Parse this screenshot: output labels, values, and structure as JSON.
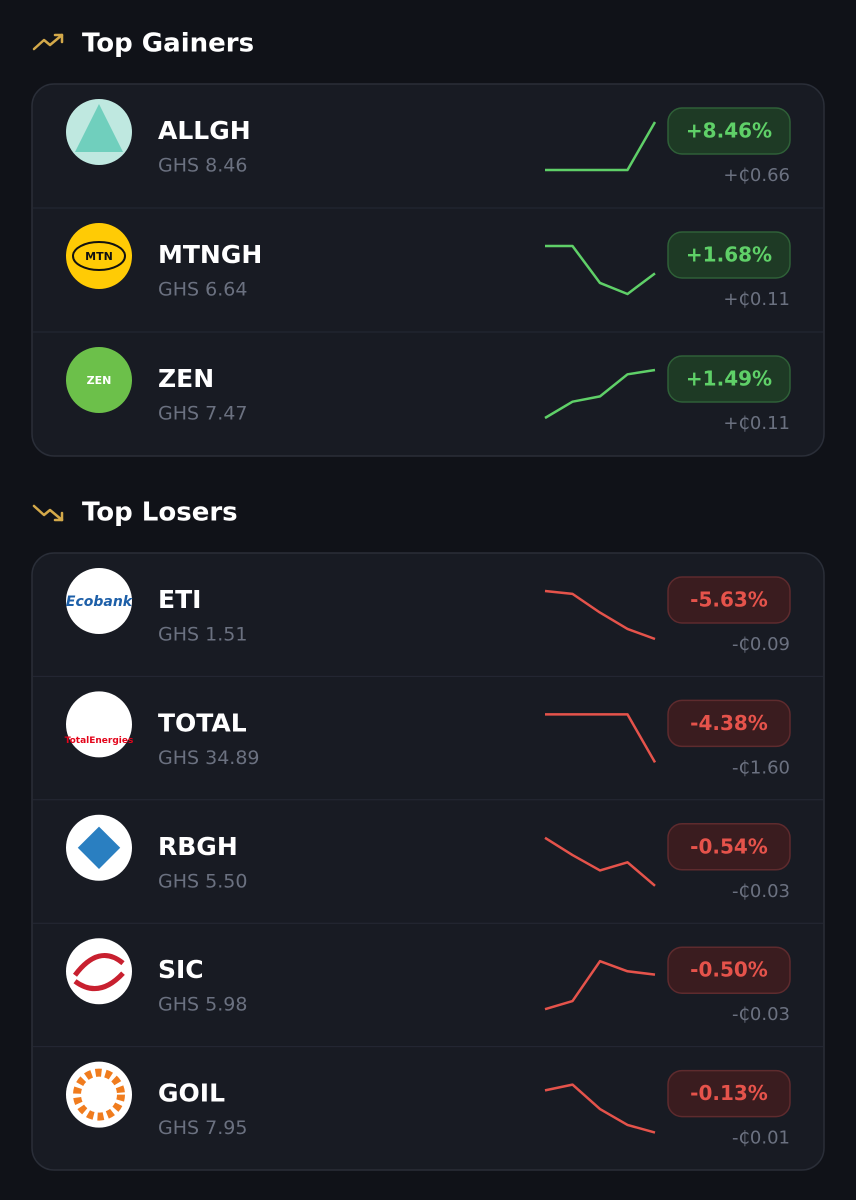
{
  "sections": [
    {
      "title": "Top Gainers",
      "trend": "up",
      "stocks": [
        {
          "ticker": "ALLGH",
          "price": "GHS 8.46",
          "change_pct": "+8.46%",
          "change_abs": "+₵0.66",
          "spark": [
            0,
            0,
            0,
            0,
            100
          ]
        },
        {
          "ticker": "MTNGH",
          "price": "GHS 6.64",
          "change_pct": "+1.68%",
          "change_abs": "+₵0.11",
          "logo_text": "MTN",
          "spark": [
            100,
            100,
            23,
            0,
            43
          ]
        },
        {
          "ticker": "ZEN",
          "price": "GHS 7.47",
          "change_pct": "+1.49%",
          "change_abs": "+₵0.11",
          "logo_text": "ZEN",
          "spark": [
            0,
            34,
            45,
            91,
            100
          ]
        }
      ]
    },
    {
      "title": "Top Losers",
      "trend": "down",
      "stocks": [
        {
          "ticker": "ETI",
          "price": "GHS 1.51",
          "change_pct": "-5.63%",
          "change_abs": "-₵0.09",
          "logo_text": "Ecobank",
          "spark": [
            100,
            94,
            55,
            21,
            0
          ]
        },
        {
          "ticker": "TOTAL",
          "price": "GHS 34.89",
          "change_pct": "-4.38%",
          "change_abs": "-₵1.60",
          "logo_text": "TotalEnergies",
          "spark": [
            100,
            100,
            100,
            100,
            0
          ]
        },
        {
          "ticker": "RBGH",
          "price": "GHS 5.50",
          "change_pct": "-0.54%",
          "change_abs": "-₵0.03",
          "spark": [
            100,
            64,
            32,
            49,
            0
          ]
        },
        {
          "ticker": "SIC",
          "price": "GHS 5.98",
          "change_pct": "-0.50%",
          "change_abs": "-₵0.03",
          "spark": [
            0,
            17,
            100,
            79,
            72
          ]
        },
        {
          "ticker": "GOIL",
          "price": "GHS 7.95",
          "change_pct": "-0.13%",
          "change_abs": "-₵0.01",
          "spark": [
            88,
            100,
            49,
            16,
            0
          ]
        }
      ]
    }
  ]
}
